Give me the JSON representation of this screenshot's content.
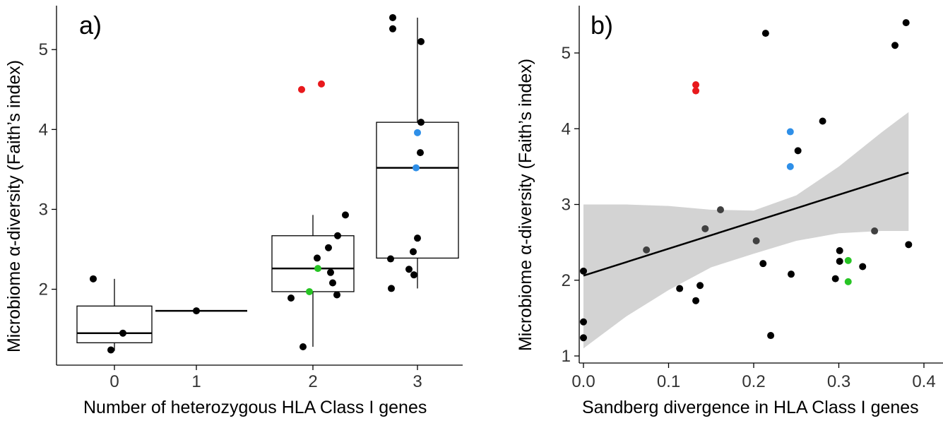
{
  "chart_data": [
    {
      "type": "box",
      "panel_label": "a)",
      "xlabel": "Number of heterozygous HLA Class I genes",
      "ylabel": "Microbiome α-diversity (Faith’s index)",
      "categories": [
        "0",
        "1",
        "2",
        "3"
      ],
      "yticks": [
        2,
        3,
        4,
        5
      ],
      "ylim": [
        1.05,
        5.55
      ],
      "grid": false,
      "colors": {
        "default": "#000000",
        "red": "#e8191c",
        "blue": "#2e8fe8",
        "green": "#27c424"
      },
      "boxes": [
        {
          "category": "0",
          "lower_whisker": 1.23,
          "q1": 1.33,
          "median": 1.45,
          "q3": 1.79,
          "upper_whisker": 2.13
        },
        {
          "category": "1",
          "lower_whisker": 1.73,
          "q1": 1.73,
          "median": 1.73,
          "q3": 1.73,
          "upper_whisker": 1.73
        },
        {
          "category": "2",
          "lower_whisker": 1.28,
          "q1": 1.97,
          "median": 2.26,
          "q3": 2.67,
          "upper_whisker": 2.93
        },
        {
          "category": "3",
          "lower_whisker": 2.01,
          "q1": 2.39,
          "median": 3.52,
          "q3": 4.09,
          "upper_whisker": 5.4
        }
      ],
      "points": [
        {
          "category": "0",
          "y": 2.13,
          "color": "default"
        },
        {
          "category": "0",
          "y": 1.45,
          "color": "default"
        },
        {
          "category": "0",
          "y": 1.24,
          "color": "default"
        },
        {
          "category": "1",
          "y": 1.73,
          "color": "default"
        },
        {
          "category": "2",
          "y": 4.5,
          "color": "red"
        },
        {
          "category": "2",
          "y": 4.57,
          "color": "red"
        },
        {
          "category": "2",
          "y": 2.93,
          "color": "default"
        },
        {
          "category": "2",
          "y": 2.67,
          "color": "default"
        },
        {
          "category": "2",
          "y": 2.52,
          "color": "default"
        },
        {
          "category": "2",
          "y": 2.39,
          "color": "default"
        },
        {
          "category": "2",
          "y": 2.26,
          "color": "green"
        },
        {
          "category": "2",
          "y": 2.21,
          "color": "default"
        },
        {
          "category": "2",
          "y": 2.08,
          "color": "default"
        },
        {
          "category": "2",
          "y": 1.97,
          "color": "green"
        },
        {
          "category": "2",
          "y": 1.93,
          "color": "default"
        },
        {
          "category": "2",
          "y": 1.89,
          "color": "default"
        },
        {
          "category": "2",
          "y": 1.28,
          "color": "default"
        },
        {
          "category": "3",
          "y": 5.4,
          "color": "default"
        },
        {
          "category": "3",
          "y": 5.26,
          "color": "default"
        },
        {
          "category": "3",
          "y": 5.1,
          "color": "default"
        },
        {
          "category": "3",
          "y": 4.09,
          "color": "default"
        },
        {
          "category": "3",
          "y": 3.96,
          "color": "blue"
        },
        {
          "category": "3",
          "y": 3.71,
          "color": "default"
        },
        {
          "category": "3",
          "y": 3.52,
          "color": "blue"
        },
        {
          "category": "3",
          "y": 2.64,
          "color": "default"
        },
        {
          "category": "3",
          "y": 2.47,
          "color": "default"
        },
        {
          "category": "3",
          "y": 2.38,
          "color": "default"
        },
        {
          "category": "3",
          "y": 2.25,
          "color": "default"
        },
        {
          "category": "3",
          "y": 2.18,
          "color": "default"
        },
        {
          "category": "3",
          "y": 2.01,
          "color": "default"
        }
      ]
    },
    {
      "type": "scatter",
      "panel_label": "b)",
      "xlabel": "Sandberg divergence in HLA Class I genes",
      "ylabel": "Microbiome α-diversity (Faith’s index)",
      "xticks": [
        0.0,
        0.1,
        0.2,
        0.3,
        0.4
      ],
      "xtick_labels": [
        "0.0",
        "0.1",
        "0.2",
        "0.3",
        "0.4"
      ],
      "yticks": [
        1,
        2,
        3,
        4,
        5
      ],
      "xlim": [
        -0.012,
        0.405
      ],
      "ylim": [
        0.95,
        5.6
      ],
      "grid": false,
      "colors": {
        "default": "#000000",
        "red": "#e8191c",
        "blue": "#2e8fe8",
        "green": "#27c424",
        "fit": "#000000",
        "ci": "#d3d3d3",
        "grey_point": "#404040"
      },
      "fit_line": {
        "x": [
          0.0,
          0.382
        ],
        "y": [
          2.06,
          3.42
        ]
      },
      "confidence_band": {
        "x": [
          0.0,
          0.05,
          0.1,
          0.15,
          0.2,
          0.25,
          0.3,
          0.35,
          0.382
        ],
        "lower": [
          1.1,
          1.52,
          1.87,
          2.17,
          2.35,
          2.52,
          2.62,
          2.65,
          2.65
        ],
        "upper": [
          3.0,
          3.0,
          2.98,
          2.93,
          2.92,
          3.12,
          3.5,
          3.95,
          4.22
        ]
      },
      "points": [
        {
          "x": 0.0,
          "y": 2.12,
          "color": "default"
        },
        {
          "x": 0.0,
          "y": 1.45,
          "color": "default"
        },
        {
          "x": 0.0,
          "y": 1.24,
          "color": "default"
        },
        {
          "x": 0.074,
          "y": 2.4,
          "color": "grey_point"
        },
        {
          "x": 0.113,
          "y": 1.89,
          "color": "default"
        },
        {
          "x": 0.132,
          "y": 4.58,
          "color": "red"
        },
        {
          "x": 0.132,
          "y": 4.5,
          "color": "red"
        },
        {
          "x": 0.132,
          "y": 1.73,
          "color": "default"
        },
        {
          "x": 0.137,
          "y": 1.93,
          "color": "default"
        },
        {
          "x": 0.143,
          "y": 2.68,
          "color": "grey_point"
        },
        {
          "x": 0.161,
          "y": 2.93,
          "color": "grey_point"
        },
        {
          "x": 0.203,
          "y": 2.52,
          "color": "grey_point"
        },
        {
          "x": 0.211,
          "y": 2.22,
          "color": "default"
        },
        {
          "x": 0.214,
          "y": 5.26,
          "color": "default"
        },
        {
          "x": 0.22,
          "y": 1.27,
          "color": "default"
        },
        {
          "x": 0.243,
          "y": 3.96,
          "color": "blue"
        },
        {
          "x": 0.243,
          "y": 3.5,
          "color": "blue"
        },
        {
          "x": 0.244,
          "y": 2.08,
          "color": "default"
        },
        {
          "x": 0.252,
          "y": 3.71,
          "color": "default"
        },
        {
          "x": 0.281,
          "y": 4.1,
          "color": "default"
        },
        {
          "x": 0.296,
          "y": 2.02,
          "color": "default"
        },
        {
          "x": 0.301,
          "y": 2.39,
          "color": "default"
        },
        {
          "x": 0.301,
          "y": 2.25,
          "color": "default"
        },
        {
          "x": 0.311,
          "y": 2.26,
          "color": "green"
        },
        {
          "x": 0.311,
          "y": 1.98,
          "color": "green"
        },
        {
          "x": 0.328,
          "y": 2.18,
          "color": "default"
        },
        {
          "x": 0.342,
          "y": 2.65,
          "color": "grey_point"
        },
        {
          "x": 0.366,
          "y": 5.1,
          "color": "default"
        },
        {
          "x": 0.379,
          "y": 5.4,
          "color": "default"
        },
        {
          "x": 0.382,
          "y": 2.47,
          "color": "default"
        }
      ]
    }
  ]
}
